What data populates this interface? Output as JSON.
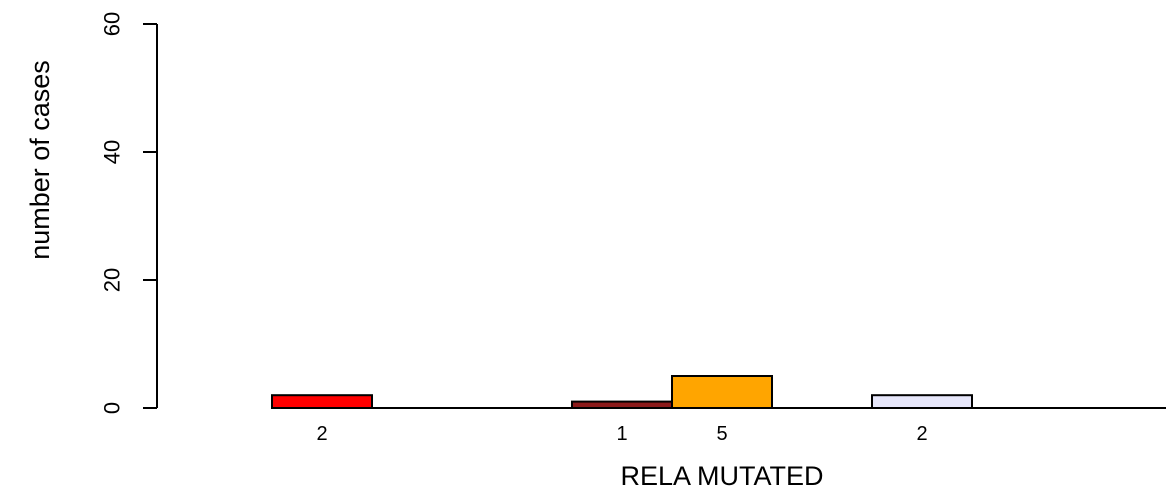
{
  "chart_data": {
    "type": "bar",
    "xlabel": "RELA MUTATED",
    "ylabel": "number of cases",
    "ylim": [
      0,
      60
    ],
    "yticks": [
      0,
      20,
      40,
      60
    ],
    "grid": false,
    "bars": [
      {
        "slot": 0,
        "value": 2,
        "label": "2",
        "color": "#ff0000"
      },
      {
        "slot": 3,
        "value": 1,
        "label": "1",
        "color": "#8b1a1a"
      },
      {
        "slot": 4,
        "value": 5,
        "label": "5",
        "color": "#ffa500"
      },
      {
        "slot": 6,
        "value": 2,
        "label": "2",
        "color": "#e6e6fa"
      }
    ],
    "slot_count": 8
  }
}
